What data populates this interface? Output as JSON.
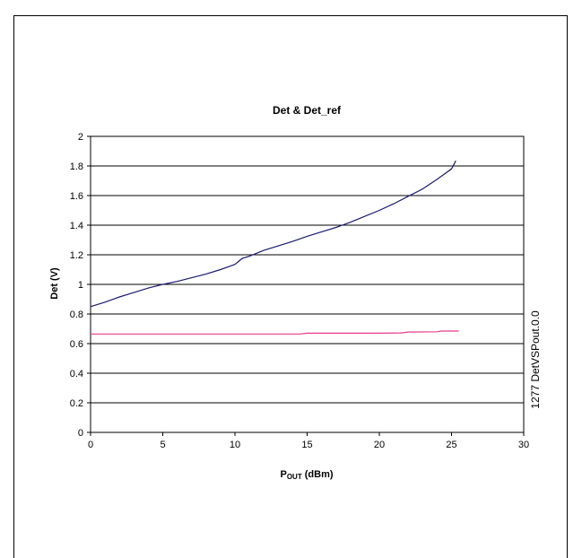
{
  "chart_data": {
    "type": "line",
    "title": "Det & Det_ref",
    "xlabel_main": "P",
    "xlabel_sub": "OUT",
    "xlabel_unit": " (dBm)",
    "ylabel": "Det (V)",
    "side_label": "1277 DetVSPout.0.0",
    "xlim": [
      0,
      30
    ],
    "ylim": [
      0,
      2
    ],
    "x_ticks": [
      0,
      5,
      10,
      15,
      20,
      25,
      30
    ],
    "x_tick_labels": [
      "0",
      "5",
      "10",
      "15",
      "20",
      "25",
      "30"
    ],
    "y_ticks": [
      0,
      0.2,
      0.4,
      0.6,
      0.8,
      1,
      1.2,
      1.4,
      1.6,
      1.8,
      2
    ],
    "y_tick_labels": [
      "0",
      "0.2",
      "0.4",
      "0.6",
      "0.8",
      "1",
      "1.2",
      "1.4",
      "1.6",
      "1.8",
      "2"
    ],
    "grid": "horizontal",
    "series": [
      {
        "color": "#1a1a6e",
        "x": [
          0,
          1,
          2,
          3,
          4,
          5,
          6,
          7,
          8,
          9,
          10,
          10.5,
          11,
          12,
          13,
          14,
          15,
          16,
          17,
          18,
          19,
          20,
          21,
          22,
          23,
          24,
          24.5,
          25,
          25.3
        ],
        "y": [
          0.85,
          0.88,
          0.915,
          0.945,
          0.975,
          1.0,
          1.02,
          1.045,
          1.07,
          1.1,
          1.135,
          1.175,
          1.19,
          1.23,
          1.26,
          1.29,
          1.325,
          1.355,
          1.385,
          1.42,
          1.46,
          1.5,
          1.545,
          1.595,
          1.645,
          1.71,
          1.745,
          1.78,
          1.835
        ]
      },
      {
        "color": "#e83a8c",
        "x": [
          0,
          5,
          10,
          14.5,
          15,
          20,
          21.5,
          22,
          24,
          24.3,
          25.5
        ],
        "y": [
          0.665,
          0.665,
          0.665,
          0.665,
          0.67,
          0.67,
          0.672,
          0.678,
          0.68,
          0.685,
          0.685
        ]
      }
    ]
  }
}
